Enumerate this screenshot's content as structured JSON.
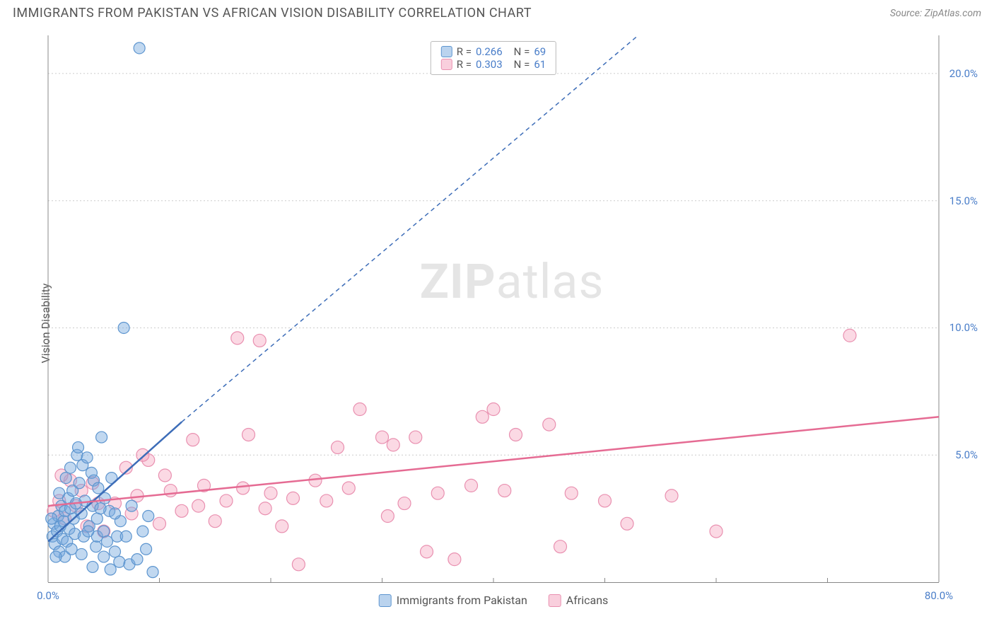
{
  "title": "IMMIGRANTS FROM PAKISTAN VS AFRICAN VISION DISABILITY CORRELATION CHART",
  "source_label": "Source: ZipAtlas.com",
  "ylabel": "Vision Disability",
  "watermark_a": "ZIP",
  "watermark_b": "atlas",
  "chart": {
    "type": "scatter",
    "xlim": [
      0,
      80
    ],
    "ylim": [
      0,
      21.5
    ],
    "xtick_labels": [
      "0.0%",
      "80.0%"
    ],
    "xtick_pos": [
      0,
      80
    ],
    "ytick_labels": [
      "5.0%",
      "10.0%",
      "15.0%",
      "20.0%"
    ],
    "ytick_pos": [
      5,
      10,
      15,
      20
    ],
    "x_minor_ticks": [
      10,
      20,
      30,
      40,
      50,
      60,
      70
    ],
    "grid_color": "#cccccc",
    "background_color": "#ffffff",
    "series": [
      {
        "name": "Immigrants from Pakistan",
        "R": "0.266",
        "N": "69",
        "marker_fill": "rgba(118,168,222,0.45)",
        "marker_stroke": "#5d95cf",
        "marker_radius": 8,
        "trend_solid": {
          "x1": 0,
          "y1": 1.6,
          "x2": 12,
          "y2": 6.3,
          "color": "#3d6db8",
          "width": 2.5
        },
        "trend_dash": {
          "x1": 12,
          "y1": 6.3,
          "x2": 53,
          "y2": 21.5,
          "color": "#3d6db8",
          "width": 1.5,
          "dash": "6,5"
        },
        "points": [
          [
            0.4,
            1.8
          ],
          [
            0.5,
            2.3
          ],
          [
            0.6,
            1.5
          ],
          [
            0.8,
            2.0
          ],
          [
            0.9,
            2.6
          ],
          [
            1.0,
            1.2
          ],
          [
            1.1,
            2.2
          ],
          [
            1.2,
            3.0
          ],
          [
            1.3,
            1.7
          ],
          [
            1.4,
            2.4
          ],
          [
            1.5,
            1.0
          ],
          [
            1.5,
            2.8
          ],
          [
            1.7,
            1.6
          ],
          [
            1.8,
            3.3
          ],
          [
            1.9,
            2.1
          ],
          [
            2.0,
            2.9
          ],
          [
            2.1,
            1.3
          ],
          [
            2.2,
            3.6
          ],
          [
            2.3,
            2.5
          ],
          [
            2.4,
            1.9
          ],
          [
            2.6,
            5.0
          ],
          [
            2.7,
            5.3
          ],
          [
            2.8,
            3.9
          ],
          [
            3.0,
            1.1
          ],
          [
            3.0,
            2.7
          ],
          [
            3.1,
            4.6
          ],
          [
            3.2,
            1.8
          ],
          [
            3.3,
            3.2
          ],
          [
            3.5,
            4.9
          ],
          [
            3.7,
            2.2
          ],
          [
            3.9,
            4.3
          ],
          [
            4.0,
            0.6
          ],
          [
            4.0,
            3.0
          ],
          [
            4.1,
            4.0
          ],
          [
            4.3,
            1.4
          ],
          [
            4.4,
            1.8
          ],
          [
            4.4,
            2.5
          ],
          [
            4.5,
            3.7
          ],
          [
            4.8,
            5.7
          ],
          [
            5.0,
            1.0
          ],
          [
            5.0,
            2.0
          ],
          [
            5.1,
            3.3
          ],
          [
            5.3,
            1.6
          ],
          [
            5.5,
            2.8
          ],
          [
            5.6,
            0.5
          ],
          [
            5.7,
            4.1
          ],
          [
            6.0,
            1.2
          ],
          [
            6.2,
            1.8
          ],
          [
            6.4,
            0.8
          ],
          [
            6.5,
            2.4
          ],
          [
            6.8,
            10.0
          ],
          [
            7.0,
            1.8
          ],
          [
            7.3,
            0.7
          ],
          [
            7.5,
            3.0
          ],
          [
            8.0,
            0.9
          ],
          [
            8.2,
            21.0
          ],
          [
            8.5,
            2.0
          ],
          [
            8.8,
            1.3
          ],
          [
            9.0,
            2.6
          ],
          [
            9.4,
            0.4
          ],
          [
            1.0,
            3.5
          ],
          [
            1.6,
            4.1
          ],
          [
            2.0,
            4.5
          ],
          [
            2.5,
            3.1
          ],
          [
            0.7,
            1.0
          ],
          [
            0.3,
            2.5
          ],
          [
            3.6,
            2.0
          ],
          [
            6.0,
            2.7
          ],
          [
            4.7,
            2.9
          ]
        ]
      },
      {
        "name": "Africans",
        "R": "0.303",
        "N": "61",
        "marker_fill": "rgba(244,160,188,0.40)",
        "marker_stroke": "#e990b0",
        "marker_radius": 9,
        "trend_solid": {
          "x1": 0,
          "y1": 3.0,
          "x2": 80,
          "y2": 6.5,
          "color": "#e56b93",
          "width": 2.5
        },
        "points": [
          [
            0.5,
            2.8
          ],
          [
            1.0,
            3.2
          ],
          [
            1.5,
            2.5
          ],
          [
            2.0,
            4.0
          ],
          [
            2.5,
            3.0
          ],
          [
            3.0,
            3.6
          ],
          [
            3.5,
            2.2
          ],
          [
            4.0,
            3.9
          ],
          [
            5.0,
            2.0
          ],
          [
            6.0,
            3.1
          ],
          [
            7.0,
            4.5
          ],
          [
            7.5,
            2.7
          ],
          [
            8.0,
            3.4
          ],
          [
            9.0,
            4.8
          ],
          [
            10.0,
            2.3
          ],
          [
            11.0,
            3.6
          ],
          [
            12.0,
            2.8
          ],
          [
            13.0,
            5.6
          ],
          [
            13.5,
            3.0
          ],
          [
            14.0,
            3.8
          ],
          [
            15.0,
            2.4
          ],
          [
            16.0,
            3.2
          ],
          [
            17.0,
            9.6
          ],
          [
            17.5,
            3.7
          ],
          [
            18.0,
            5.8
          ],
          [
            19.0,
            9.5
          ],
          [
            19.5,
            2.9
          ],
          [
            20.0,
            3.5
          ],
          [
            21.0,
            2.2
          ],
          [
            22.0,
            3.3
          ],
          [
            22.5,
            0.7
          ],
          [
            24.0,
            4.0
          ],
          [
            25.0,
            3.2
          ],
          [
            26.0,
            5.3
          ],
          [
            27.0,
            3.7
          ],
          [
            28.0,
            6.8
          ],
          [
            30.0,
            5.7
          ],
          [
            30.5,
            2.6
          ],
          [
            31.0,
            5.4
          ],
          [
            32.0,
            3.1
          ],
          [
            33.0,
            5.7
          ],
          [
            34.0,
            1.2
          ],
          [
            35.0,
            3.5
          ],
          [
            36.5,
            0.9
          ],
          [
            38.0,
            3.8
          ],
          [
            39.0,
            6.5
          ],
          [
            40.0,
            6.8
          ],
          [
            41.0,
            3.6
          ],
          [
            42.0,
            5.8
          ],
          [
            45.0,
            6.2
          ],
          [
            46.0,
            1.4
          ],
          [
            47.0,
            3.5
          ],
          [
            50.0,
            3.2
          ],
          [
            52.0,
            2.3
          ],
          [
            56.0,
            3.4
          ],
          [
            60.0,
            2.0
          ],
          [
            72.0,
            9.7
          ],
          [
            1.2,
            4.2
          ],
          [
            4.5,
            3.1
          ],
          [
            8.5,
            5.0
          ],
          [
            10.5,
            4.2
          ]
        ]
      }
    ],
    "legend_top": [
      {
        "swatch_fill": "rgba(118,168,222,0.5)",
        "swatch_border": "#5d95cf",
        "R": "0.266",
        "N": "69"
      },
      {
        "swatch_fill": "rgba(244,160,188,0.5)",
        "swatch_border": "#e990b0",
        "R": "0.303",
        "N": "61"
      }
    ],
    "legend_bottom": [
      {
        "swatch_fill": "rgba(118,168,222,0.5)",
        "swatch_border": "#5d95cf",
        "label": "Immigrants from Pakistan"
      },
      {
        "swatch_fill": "rgba(244,160,188,0.5)",
        "swatch_border": "#e990b0",
        "label": "Africans"
      }
    ]
  }
}
